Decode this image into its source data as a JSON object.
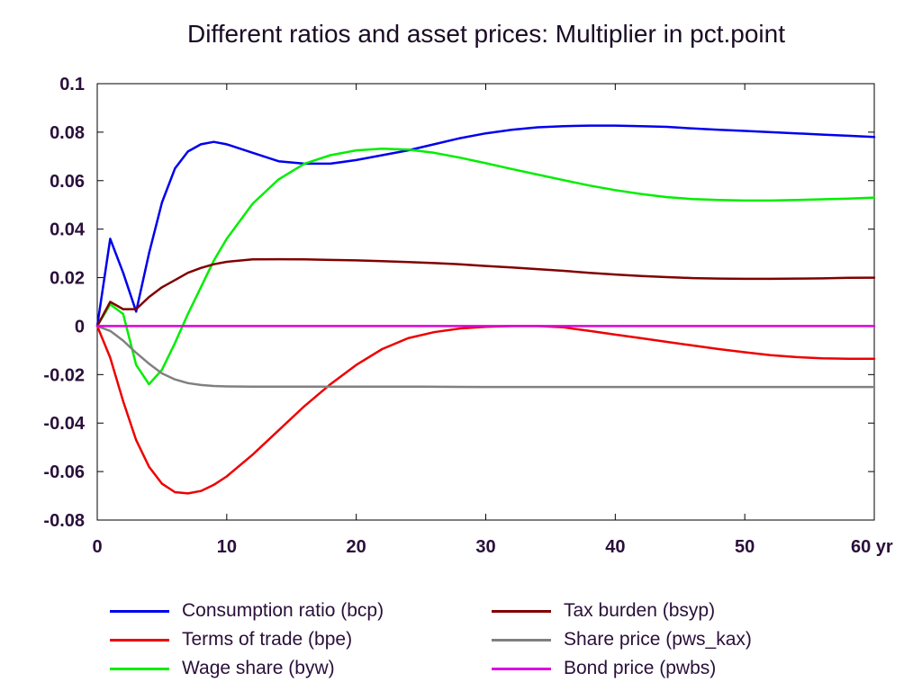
{
  "chart_data": {
    "type": "line",
    "title": "Different ratios and asset prices: Multiplier in pct.point",
    "xlabel": "",
    "ylabel": "",
    "x_unit": "yr",
    "xlim": [
      0,
      60
    ],
    "ylim": [
      -0.08,
      0.1
    ],
    "x_ticks": [
      0,
      10,
      20,
      30,
      40,
      50,
      60
    ],
    "x_tick_labels": [
      "0",
      "10",
      "20",
      "30",
      "40",
      "50",
      "60 yr"
    ],
    "y_ticks": [
      -0.08,
      -0.06,
      -0.04,
      -0.02,
      0,
      0.02,
      0.04,
      0.06,
      0.08,
      0.1
    ],
    "y_tick_labels": [
      "-0.08",
      "-0.06",
      "-0.04",
      "-0.02",
      "0",
      "0.02",
      "0.04",
      "0.06",
      "0.08",
      "0.1"
    ],
    "grid": false,
    "legend_position": "bottom",
    "series": [
      {
        "name": "Consumption ratio (bcp)",
        "color": "#0000ee",
        "x": [
          0,
          1,
          2,
          3,
          4,
          5,
          6,
          7,
          8,
          9,
          10,
          12,
          14,
          16,
          18,
          20,
          22,
          24,
          26,
          28,
          30,
          32,
          34,
          36,
          38,
          40,
          42,
          44,
          46,
          48,
          50,
          52,
          54,
          56,
          58,
          60
        ],
        "y": [
          0,
          0.036,
          0.022,
          0.006,
          0.03,
          0.051,
          0.065,
          0.072,
          0.075,
          0.076,
          0.075,
          0.0715,
          0.068,
          0.067,
          0.067,
          0.0685,
          0.0705,
          0.0725,
          0.075,
          0.0775,
          0.0795,
          0.081,
          0.082,
          0.0825,
          0.0827,
          0.0827,
          0.0825,
          0.0822,
          0.0815,
          0.081,
          0.0805,
          0.08,
          0.0795,
          0.079,
          0.0785,
          0.078
        ]
      },
      {
        "name": "Terms of trade (bpe)",
        "color": "#ee0000",
        "x": [
          0,
          1,
          2,
          3,
          4,
          5,
          6,
          7,
          8,
          9,
          10,
          12,
          14,
          16,
          18,
          20,
          22,
          24,
          26,
          28,
          30,
          32,
          34,
          36,
          38,
          40,
          42,
          44,
          46,
          48,
          50,
          52,
          54,
          56,
          58,
          60
        ],
        "y": [
          0,
          -0.013,
          -0.031,
          -0.047,
          -0.058,
          -0.065,
          -0.0685,
          -0.069,
          -0.068,
          -0.0655,
          -0.062,
          -0.053,
          -0.043,
          -0.033,
          -0.024,
          -0.016,
          -0.0095,
          -0.005,
          -0.0025,
          -0.001,
          -0.0003,
          0,
          0,
          -0.0005,
          -0.002,
          -0.0035,
          -0.005,
          -0.0065,
          -0.008,
          -0.0095,
          -0.0108,
          -0.012,
          -0.0128,
          -0.0133,
          -0.0135,
          -0.0135
        ]
      },
      {
        "name": "Wage share (byw)",
        "color": "#00ee00",
        "x": [
          0,
          1,
          2,
          3,
          4,
          5,
          6,
          7,
          8,
          9,
          10,
          12,
          14,
          16,
          18,
          20,
          22,
          24,
          26,
          28,
          30,
          32,
          34,
          36,
          38,
          40,
          42,
          44,
          46,
          48,
          50,
          52,
          54,
          56,
          58,
          60
        ],
        "y": [
          0,
          0.009,
          0.005,
          -0.016,
          -0.024,
          -0.018,
          -0.007,
          0.005,
          0.016,
          0.027,
          0.036,
          0.0505,
          0.0605,
          0.067,
          0.0705,
          0.0725,
          0.0732,
          0.0728,
          0.0715,
          0.0695,
          0.0672,
          0.0648,
          0.0625,
          0.0602,
          0.058,
          0.0561,
          0.0545,
          0.0532,
          0.0524,
          0.052,
          0.0518,
          0.0518,
          0.052,
          0.0523,
          0.0526,
          0.053
        ]
      },
      {
        "name": "Tax burden (bsyp)",
        "color": "#800000",
        "x": [
          0,
          1,
          2,
          3,
          4,
          5,
          6,
          7,
          8,
          9,
          10,
          12,
          14,
          16,
          18,
          20,
          22,
          24,
          26,
          28,
          30,
          32,
          34,
          36,
          38,
          40,
          42,
          44,
          46,
          48,
          50,
          52,
          54,
          56,
          58,
          60
        ],
        "y": [
          0,
          0.01,
          0.007,
          0.007,
          0.012,
          0.016,
          0.019,
          0.022,
          0.024,
          0.0255,
          0.0265,
          0.0275,
          0.0276,
          0.0275,
          0.0273,
          0.0271,
          0.0268,
          0.0264,
          0.026,
          0.0255,
          0.0248,
          0.0242,
          0.0235,
          0.0228,
          0.022,
          0.0213,
          0.0207,
          0.0202,
          0.0198,
          0.0196,
          0.0195,
          0.0195,
          0.0196,
          0.0197,
          0.0199,
          0.02
        ]
      },
      {
        "name": "Share price (pws_kax)",
        "color": "#808080",
        "x": [
          0,
          1,
          2,
          3,
          4,
          5,
          6,
          7,
          8,
          9,
          10,
          12,
          14,
          16,
          18,
          20,
          25,
          30,
          35,
          40,
          45,
          50,
          55,
          60
        ],
        "y": [
          0,
          -0.002,
          -0.006,
          -0.011,
          -0.0155,
          -0.0195,
          -0.022,
          -0.0235,
          -0.0243,
          -0.0247,
          -0.0249,
          -0.025,
          -0.025,
          -0.025,
          -0.025,
          -0.025,
          -0.025,
          -0.0251,
          -0.0251,
          -0.0251,
          -0.0251,
          -0.0251,
          -0.0251,
          -0.0251
        ]
      },
      {
        "name": "Bond price (pwbs)",
        "color": "#dd00dd",
        "x": [
          0,
          60
        ],
        "y": [
          0,
          0
        ]
      }
    ]
  },
  "legend": {
    "items": [
      {
        "label": "Consumption ratio (bcp)",
        "color": "#0000ee"
      },
      {
        "label": "Terms of trade (bpe)",
        "color": "#ee0000"
      },
      {
        "label": "Wage share (byw)",
        "color": "#00ee00"
      },
      {
        "label": "Tax burden (bsyp)",
        "color": "#800000"
      },
      {
        "label": "Share price (pws_kax)",
        "color": "#808080"
      },
      {
        "label": "Bond price (pwbs)",
        "color": "#dd00dd"
      }
    ]
  }
}
